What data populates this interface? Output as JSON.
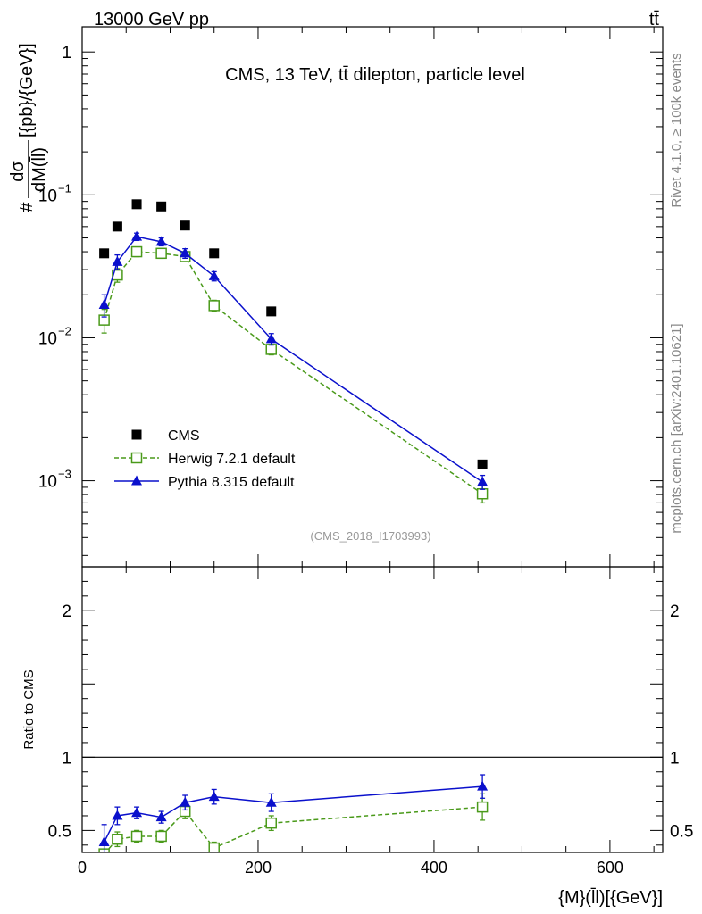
{
  "header": {
    "left": "13000 GeV pp",
    "right": "tt̄"
  },
  "side_labels": {
    "rivet": "Rivet 4.1.0, ≥ 100k events",
    "mcplots": "mcplots.cern.ch [arXiv:2401.10621]"
  },
  "chart_data": [
    {
      "type": "scatter",
      "panel": "main",
      "title": "CMS, 13 TeV, tt̄ dilepton, particle level",
      "watermark": "(CMS_2018_I1703993)",
      "ylabel": {
        "prefix": "#",
        "numerator": "dσ",
        "denominator": "dM(l̄l)",
        "suffix": "[{pb}/{GeV}]"
      },
      "yscale": "log",
      "ylim": [
        0.00025,
        1.5
      ],
      "xlim": [
        0,
        660
      ],
      "y_tick_labels": [
        {
          "value": 1,
          "base": "1",
          "exp": ""
        },
        {
          "value": 0.1,
          "base": "10",
          "exp": "−1"
        },
        {
          "value": 0.01,
          "base": "10",
          "exp": "−2"
        },
        {
          "value": 0.001,
          "base": "10",
          "exp": "−3"
        }
      ],
      "legend": {
        "position": "lower-left",
        "entries": [
          "CMS",
          "Herwig 7.2.1 default",
          "Pythia 8.315 default"
        ]
      },
      "series": [
        {
          "name": "CMS",
          "color": "#000000",
          "marker": "square-filled",
          "x": [
            25,
            40,
            62,
            90,
            117,
            150,
            215,
            455
          ],
          "y": [
            0.039,
            0.06,
            0.086,
            0.083,
            0.061,
            0.039,
            0.0153,
            0.0013
          ],
          "yerr": [
            0,
            0,
            0,
            0,
            0,
            0,
            0,
            0
          ]
        },
        {
          "name": "Herwig 7.2.1 default",
          "color": "#4a9a1a",
          "marker": "square-open",
          "linestyle": "dashed",
          "x": [
            25,
            40,
            62,
            90,
            117,
            150,
            215,
            455
          ],
          "y": [
            0.0133,
            0.0275,
            0.04,
            0.039,
            0.037,
            0.0168,
            0.0083,
            0.00081
          ],
          "yerr": [
            0.0025,
            0.003,
            0.003,
            0.003,
            0.003,
            0.0015,
            0.0007,
            0.00011
          ]
        },
        {
          "name": "Pythia 8.315 default",
          "color": "#0a10cc",
          "marker": "triangle-filled",
          "linestyle": "solid",
          "x": [
            25,
            40,
            62,
            90,
            117,
            150,
            215,
            455
          ],
          "y": [
            0.017,
            0.034,
            0.051,
            0.047,
            0.039,
            0.027,
            0.0098,
            0.00098
          ],
          "yerr": [
            0.003,
            0.004,
            0.003,
            0.003,
            0.003,
            0.002,
            0.0009,
            0.00011
          ]
        }
      ]
    },
    {
      "type": "scatter",
      "panel": "ratio",
      "ylabel": "Ratio to CMS",
      "xlabel": "{M}(l̄l)[{GeV}]",
      "ylim": [
        0.35,
        2.3
      ],
      "xlim": [
        0,
        660
      ],
      "x_ticks": [
        0,
        200,
        400,
        600
      ],
      "x_tick_labels": [
        "0",
        "200",
        "400",
        "600"
      ],
      "y_ticks": [
        0.5,
        1,
        2
      ],
      "y_tick_labels": [
        "0.5",
        "1",
        "2"
      ],
      "series": [
        {
          "name": "Herwig 7.2.1 default",
          "color": "#4a9a1a",
          "marker": "square-open",
          "linestyle": "dashed",
          "x": [
            25,
            40,
            62,
            90,
            117,
            150,
            215,
            455
          ],
          "y": [
            0.34,
            0.44,
            0.46,
            0.46,
            0.63,
            0.38,
            0.55,
            0.66
          ],
          "yerr": [
            0.06,
            0.05,
            0.04,
            0.04,
            0.05,
            0.04,
            0.05,
            0.09
          ]
        },
        {
          "name": "Pythia 8.315 default",
          "color": "#0a10cc",
          "marker": "triangle-filled",
          "linestyle": "solid",
          "x": [
            25,
            40,
            62,
            90,
            117,
            150,
            215,
            455
          ],
          "y": [
            0.42,
            0.6,
            0.62,
            0.59,
            0.69,
            0.73,
            0.69,
            0.8
          ],
          "yerr": [
            0.12,
            0.06,
            0.04,
            0.04,
            0.05,
            0.05,
            0.06,
            0.08
          ]
        }
      ]
    }
  ]
}
